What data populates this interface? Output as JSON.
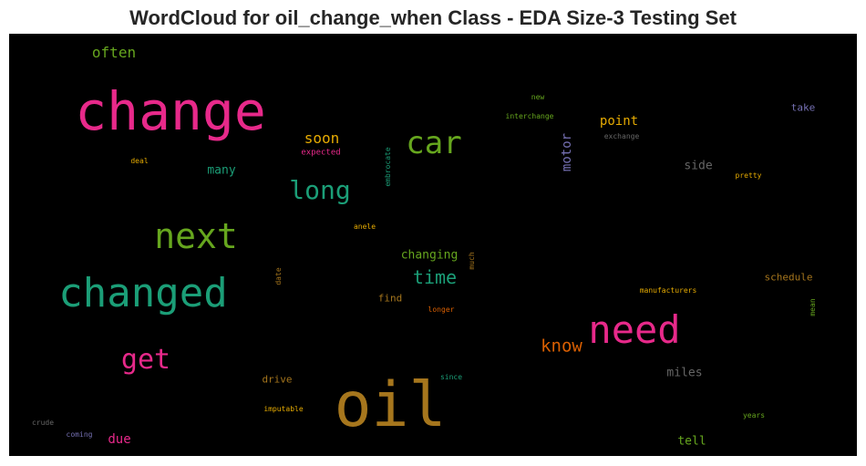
{
  "title": "WordCloud for oil_change_when Class - EDA Size-3 Testing Set",
  "background_color": "#000000",
  "colormap": "Dark2",
  "words": [
    {
      "text": "change",
      "color": "#e7298a",
      "weight": 100
    },
    {
      "text": "oil",
      "color": "#a6761d",
      "weight": 98
    },
    {
      "text": "need",
      "color": "#e7298a",
      "weight": 68
    },
    {
      "text": "changed",
      "color": "#1b9e77",
      "weight": 68
    },
    {
      "text": "next",
      "color": "#66a61e",
      "weight": 60
    },
    {
      "text": "car",
      "color": "#66a61e",
      "weight": 55
    },
    {
      "text": "long",
      "color": "#1b9e77",
      "weight": 46
    },
    {
      "text": "get",
      "color": "#e7298a",
      "weight": 46
    },
    {
      "text": "time",
      "color": "#1b9e77",
      "weight": 36
    },
    {
      "text": "know",
      "color": "#d95f02",
      "weight": 32
    },
    {
      "text": "often",
      "color": "#66a61e",
      "weight": 27
    },
    {
      "text": "soon",
      "color": "#e6ab02",
      "weight": 26
    },
    {
      "text": "motor",
      "color": "#7570b3",
      "weight": 24
    },
    {
      "text": "point",
      "color": "#e6ab02",
      "weight": 24
    },
    {
      "text": "changing",
      "color": "#66a61e",
      "weight": 22
    },
    {
      "text": "side",
      "color": "#666666",
      "weight": 22
    },
    {
      "text": "many",
      "color": "#1b9e77",
      "weight": 22
    },
    {
      "text": "miles",
      "color": "#666666",
      "weight": 22
    },
    {
      "text": "due",
      "color": "#e7298a",
      "weight": 22
    },
    {
      "text": "tell",
      "color": "#66a61e",
      "weight": 22
    },
    {
      "text": "find",
      "color": "#a6761d",
      "weight": 20
    },
    {
      "text": "drive",
      "color": "#a6761d",
      "weight": 20
    },
    {
      "text": "schedule",
      "color": "#a6761d",
      "weight": 20
    },
    {
      "text": "take",
      "color": "#7570b3",
      "weight": 20
    },
    {
      "text": "expected",
      "color": "#e7298a",
      "weight": 14
    },
    {
      "text": "deal",
      "color": "#e6ab02",
      "weight": 14
    },
    {
      "text": "embrocate",
      "color": "#1b9e77",
      "weight": 14
    },
    {
      "text": "new",
      "color": "#66a61e",
      "weight": 13
    },
    {
      "text": "interchange",
      "color": "#66a61e",
      "weight": 14
    },
    {
      "text": "exchange",
      "color": "#666666",
      "weight": 14
    },
    {
      "text": "pretty",
      "color": "#e6ab02",
      "weight": 14
    },
    {
      "text": "anele",
      "color": "#e6ab02",
      "weight": 14
    },
    {
      "text": "much",
      "color": "#a6761d",
      "weight": 14
    },
    {
      "text": "date",
      "color": "#a6761d",
      "weight": 14
    },
    {
      "text": "manufacturers",
      "color": "#e6ab02",
      "weight": 14
    },
    {
      "text": "longer",
      "color": "#d95f02",
      "weight": 14
    },
    {
      "text": "mean",
      "color": "#66a61e",
      "weight": 14
    },
    {
      "text": "since",
      "color": "#1b9e77",
      "weight": 14
    },
    {
      "text": "imputable",
      "color": "#e6ab02",
      "weight": 14
    },
    {
      "text": "years",
      "color": "#66a61e",
      "weight": 14
    },
    {
      "text": "crude",
      "color": "#666666",
      "weight": 14
    },
    {
      "text": "coming",
      "color": "#7570b3",
      "weight": 14
    }
  ]
}
